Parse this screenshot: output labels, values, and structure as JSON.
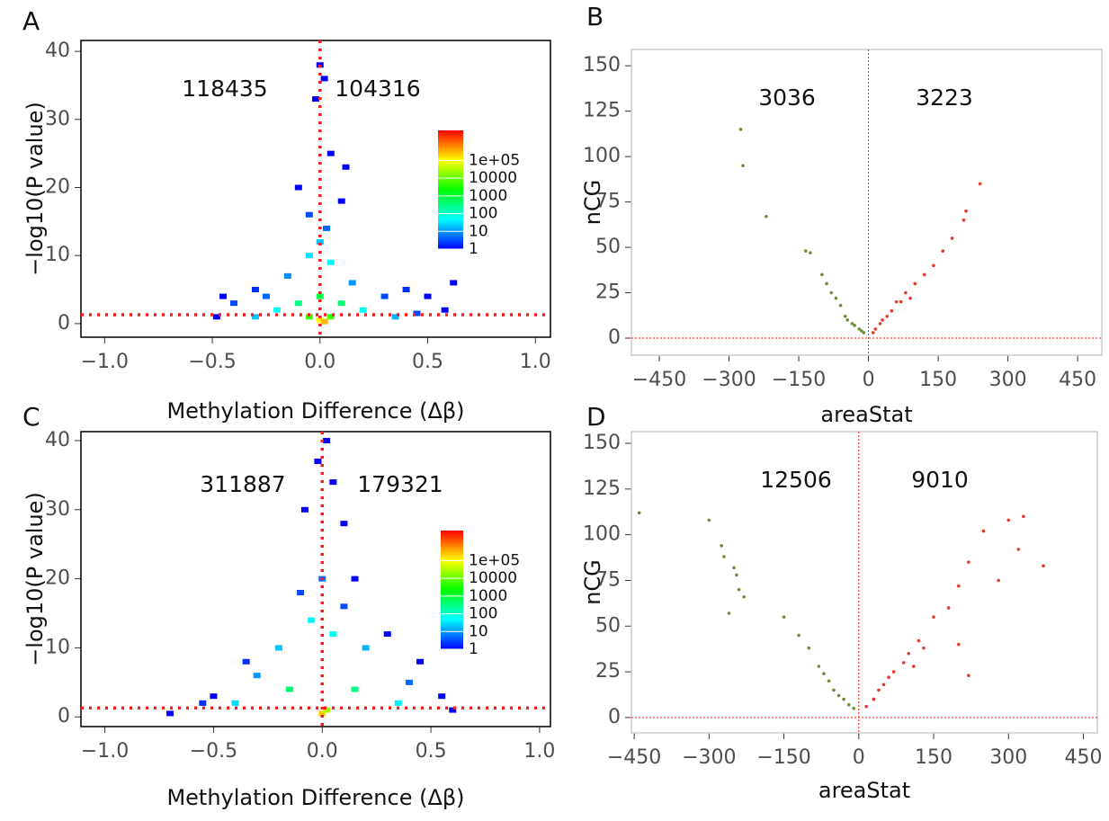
{
  "chart_data": [
    {
      "type": "hexbin",
      "panel_label": "A",
      "x_label": "Methylation Difference (Δβ)",
      "y_label": "−log10(P value)",
      "annotations": [
        "118435",
        "104316"
      ],
      "xlim": [
        -1.11,
        1.07
      ],
      "ylim": [
        -2,
        41.6
      ],
      "xticks": [
        {
          "value": -1,
          "label": "−1.0"
        },
        {
          "value": -0.5,
          "label": "−0.5"
        },
        {
          "value": 0,
          "label": "0.0"
        },
        0.5,
        {
          "value": 1,
          "label": "1.0"
        }
      ],
      "yticks": [
        0,
        10,
        20,
        30,
        40
      ],
      "vline": 0,
      "hline": 1.3,
      "line_color": "#ff1a1a",
      "clim": [
        1,
        5000000
      ],
      "cticks": [
        1,
        10,
        100,
        1000,
        10000,
        {
          "value": 100000,
          "label": "1e+05"
        }
      ],
      "x": [
        0,
        0.02,
        -0.02,
        0.05,
        0.12,
        -0.1,
        0.1,
        -0.05,
        0.03,
        0,
        -0.05,
        0.05,
        -0.15,
        0.15,
        -0.3,
        -0.45,
        -0.4,
        -0.25,
        0.3,
        0.4,
        0.5,
        0.62,
        0.58,
        -0.48,
        -0.2,
        0.2,
        -0.1,
        0.1,
        0,
        -0.05,
        0.05,
        0,
        0.02,
        -0.3,
        0.35,
        0.45
      ],
      "y": [
        38,
        36,
        33,
        25,
        23,
        20,
        18,
        16,
        14,
        12,
        10,
        9,
        7,
        6,
        5,
        4,
        3,
        4,
        4,
        5,
        4,
        6,
        2,
        1,
        2,
        2,
        3,
        3,
        4,
        1,
        1,
        0.5,
        0.3,
        1,
        1,
        1.5
      ],
      "counts": [
        1,
        1,
        1,
        1,
        1,
        1,
        1,
        3,
        5,
        20,
        30,
        40,
        8,
        10,
        2,
        1,
        3,
        5,
        3,
        2,
        1,
        1,
        1,
        1,
        50,
        60,
        300,
        400,
        800,
        5000,
        6000,
        100000,
        300000,
        20,
        15,
        3
      ]
    },
    {
      "type": "scatter",
      "panel_label": "B",
      "x_label": "areaStat",
      "y_label": "nCG",
      "annotations": [
        "3036",
        "3223"
      ],
      "xlim": [
        -510,
        502
      ],
      "ylim": [
        -9.4,
        159
      ],
      "xticks": [
        {
          "value": -450,
          "label": "−450"
        },
        {
          "value": -300,
          "label": "−300"
        },
        {
          "value": -150,
          "label": "−150"
        },
        0,
        150,
        300,
        450
      ],
      "yticks": [
        0,
        25,
        50,
        75,
        100,
        125,
        150
      ],
      "vline": 0,
      "hline": 0,
      "line_color": "#ff1a1a",
      "series": [
        {
          "color": "#6b8e3a",
          "x": [
            -275,
            -270,
            -220,
            -135,
            -125,
            -100,
            -90,
            -80,
            -70,
            -60,
            -50,
            -45,
            -35,
            -30,
            -20,
            -15,
            -10
          ],
          "y": [
            115,
            95,
            67,
            48,
            47,
            35,
            30,
            25,
            22,
            18,
            12,
            10,
            8,
            7,
            5,
            4,
            3
          ]
        },
        {
          "color": "#e8392a",
          "x": [
            240,
            210,
            205,
            180,
            160,
            140,
            120,
            100,
            80,
            60,
            40,
            25,
            10,
            15,
            30,
            50,
            70,
            90
          ],
          "y": [
            85,
            70,
            65,
            55,
            48,
            40,
            35,
            30,
            25,
            20,
            12,
            8,
            3,
            5,
            10,
            15,
            20,
            22
          ]
        }
      ]
    },
    {
      "type": "hexbin",
      "panel_label": "C",
      "x_label": "Methylation Difference (Δβ)",
      "y_label": "−log10(P value)",
      "annotations": [
        "311887",
        "179321"
      ],
      "xlim": [
        -1.11,
        1.05
      ],
      "ylim": [
        -1.4,
        41.3
      ],
      "xticks": [
        {
          "value": -1,
          "label": "−1.0"
        },
        {
          "value": -0.5,
          "label": "−0.5"
        },
        {
          "value": 0,
          "label": "0.0"
        },
        0.5,
        {
          "value": 1,
          "label": "1.0"
        }
      ],
      "yticks": [
        0,
        10,
        20,
        30,
        40
      ],
      "vline": 0,
      "hline": 1.3,
      "line_color": "#ff1a1a",
      "clim": [
        1,
        5000000
      ],
      "cticks": [
        1,
        10,
        100,
        1000,
        10000,
        {
          "value": 100000,
          "label": "1e+05"
        }
      ],
      "x": [
        0.02,
        -0.02,
        0.05,
        -0.08,
        0.1,
        0.15,
        0.3,
        -0.35,
        0.45,
        -0.5,
        -0.55,
        -0.7,
        0.6,
        0.55,
        -0.1,
        0.1,
        -0.2,
        0.2,
        -0.3,
        0.4,
        -0.05,
        0.05,
        0,
        -0.15,
        0.15,
        0,
        0.02,
        -0.4,
        0.35
      ],
      "y": [
        40,
        37,
        34,
        30,
        28,
        20,
        12,
        8,
        8,
        3,
        2,
        0.5,
        1,
        3,
        18,
        16,
        10,
        10,
        6,
        5,
        14,
        12,
        20,
        4,
        4,
        0.5,
        1,
        2,
        2
      ],
      "counts": [
        1,
        1,
        1,
        1,
        1,
        1,
        1,
        2,
        1,
        1,
        2,
        1,
        1,
        1,
        3,
        3,
        20,
        15,
        10,
        5,
        40,
        50,
        5,
        400,
        300,
        200000,
        30000,
        30,
        40
      ]
    },
    {
      "type": "scatter",
      "panel_label": "D",
      "x_label": "areaStat",
      "y_label": "nCG",
      "annotations": [
        "12506",
        "9010"
      ],
      "xlim": [
        -455.6,
        478
      ],
      "ylim": [
        -8.4,
        156.4
      ],
      "xticks": [
        {
          "value": -450,
          "label": "−450"
        },
        {
          "value": -300,
          "label": "−300"
        },
        {
          "value": -150,
          "label": "−150"
        },
        0,
        150,
        300,
        450
      ],
      "yticks": [
        0,
        25,
        50,
        75,
        100,
        125,
        150
      ],
      "vline": 0,
      "hline": 0,
      "line_color": "#ff1a1a",
      "series": [
        {
          "color": "#6b8e3a",
          "x": [
            -440,
            -300,
            -275,
            -270,
            -250,
            -245,
            -240,
            -230,
            -260,
            -150,
            -120,
            -100,
            -80,
            -60,
            -40,
            -20,
            -10,
            -30,
            -50,
            -70
          ],
          "y": [
            112,
            108,
            94,
            88,
            82,
            78,
            70,
            66,
            57,
            55,
            45,
            38,
            28,
            20,
            12,
            7,
            5,
            10,
            15,
            24
          ]
        },
        {
          "color": "#e8392a",
          "x": [
            370,
            330,
            320,
            300,
            280,
            250,
            220,
            200,
            180,
            150,
            120,
            100,
            90,
            70,
            50,
            30,
            15,
            220,
            200,
            60,
            40,
            110,
            130
          ],
          "y": [
            83,
            110,
            92,
            108,
            75,
            102,
            85,
            72,
            60,
            55,
            42,
            35,
            30,
            25,
            18,
            10,
            6,
            23,
            40,
            22,
            15,
            28,
            38
          ]
        }
      ]
    }
  ]
}
